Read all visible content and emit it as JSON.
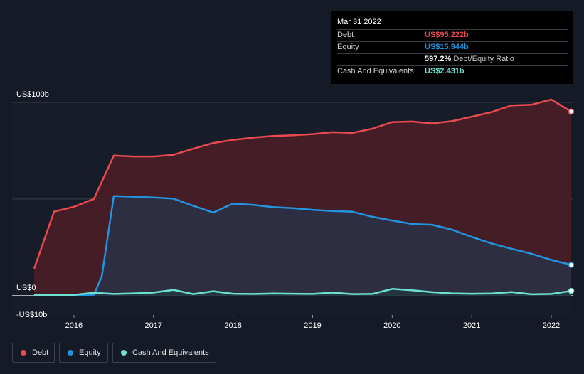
{
  "chart_data": {
    "type": "area",
    "ylim": [
      -10,
      100
    ],
    "y_tick_labels": [
      "US$100b",
      "US$0",
      "-US$10b"
    ],
    "x_tick_labels": [
      "2016",
      "2017",
      "2018",
      "2019",
      "2020",
      "2021",
      "2022"
    ],
    "grid": true,
    "legend_position": "bottom-left",
    "series": [
      {
        "name": "Debt",
        "color": "#e84a4f",
        "x": [
          2015.5,
          2015.75,
          2016.0,
          2016.25,
          2016.5,
          2016.75,
          2017.0,
          2017.25,
          2017.5,
          2017.75,
          2018.0,
          2018.25,
          2018.5,
          2018.75,
          2019.0,
          2019.25,
          2019.5,
          2019.75,
          2020.0,
          2020.25,
          2020.5,
          2020.75,
          2021.0,
          2021.25,
          2021.5,
          2021.75,
          2022.0,
          2022.25
        ],
        "values": [
          14.0,
          43.5,
          46.0,
          50.0,
          72.5,
          72.0,
          72.0,
          72.9,
          76.0,
          79.0,
          80.6,
          81.8,
          82.6,
          83.0,
          83.6,
          84.6,
          84.2,
          86.4,
          89.8,
          90.1,
          89.1,
          90.3,
          92.6,
          95.0,
          98.4,
          98.8,
          101.5,
          95.222
        ]
      },
      {
        "name": "Equity",
        "color": "#2394df",
        "x": [
          2015.5,
          2016.0,
          2016.25,
          2016.35,
          2016.5,
          2016.75,
          2017.0,
          2017.25,
          2017.5,
          2017.75,
          2018.0,
          2018.25,
          2018.5,
          2018.75,
          2019.0,
          2019.25,
          2019.5,
          2019.75,
          2020.0,
          2020.25,
          2020.5,
          2020.75,
          2021.0,
          2021.25,
          2021.5,
          2021.75,
          2022.0,
          2022.25
        ],
        "values": [
          0.2,
          0.1,
          0.5,
          10.0,
          51.5,
          51.2,
          50.8,
          50.2,
          46.5,
          43.0,
          47.6,
          47.0,
          45.8,
          45.3,
          44.4,
          43.8,
          43.4,
          40.8,
          38.9,
          37.1,
          36.7,
          34.2,
          30.4,
          27.0,
          24.3,
          21.7,
          18.5,
          15.944
        ]
      },
      {
        "name": "Cash And Equivalents",
        "color": "#6ce2d1",
        "x": [
          2015.5,
          2016.0,
          2016.25,
          2016.5,
          2016.75,
          2017.0,
          2017.25,
          2017.5,
          2017.75,
          2018.0,
          2018.25,
          2018.5,
          2018.75,
          2019.0,
          2019.25,
          2019.5,
          2019.75,
          2020.0,
          2020.25,
          2020.5,
          2020.75,
          2021.0,
          2021.25,
          2021.5,
          2021.75,
          2022.0,
          2022.25
        ],
        "values": [
          0.3,
          0.4,
          1.5,
          0.9,
          1.2,
          1.6,
          3.0,
          0.8,
          2.3,
          1.0,
          0.9,
          1.1,
          1.0,
          0.9,
          1.6,
          0.8,
          0.9,
          3.5,
          2.8,
          1.8,
          1.2,
          1.0,
          1.1,
          1.9,
          0.7,
          0.9,
          2.431
        ]
      }
    ],
    "tooltip": {
      "date": "Mar 31 2022",
      "rows": [
        {
          "label": "Debt",
          "value": "US$95.222b",
          "color": "#e84a4f"
        },
        {
          "label": "Equity",
          "value": "US$15.944b",
          "color": "#2394df"
        },
        {
          "label": "",
          "value": "597.2%",
          "suffix": "Debt/Equity Ratio",
          "color": "#ffffff"
        },
        {
          "label": "Cash And Equivalents",
          "value": "US$2.431b",
          "color": "#6ce2d1"
        }
      ]
    }
  }
}
